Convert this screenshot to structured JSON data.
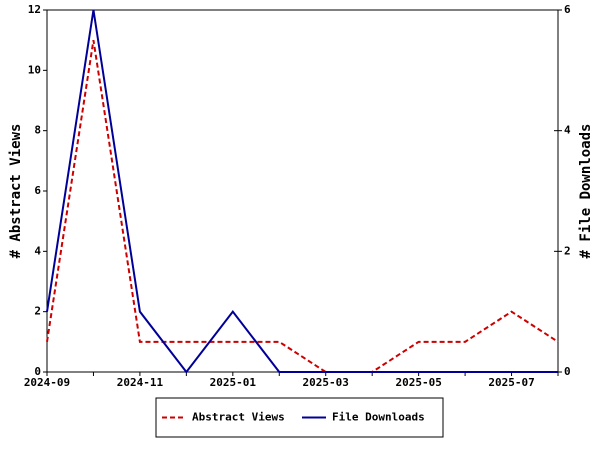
{
  "chart_data": {
    "type": "line",
    "categories": [
      "2024-09",
      null,
      "2024-11",
      null,
      "2025-01",
      null,
      "2025-03",
      null,
      "2025-05",
      null,
      "2025-07",
      null
    ],
    "series": [
      {
        "name": "Abstract Views",
        "color": "#cc0000",
        "values": [
          1,
          11,
          1,
          1,
          1,
          1,
          0,
          0,
          1,
          1,
          2,
          1
        ]
      },
      {
        "name": "File Downloads",
        "color": "#000099",
        "axis": "y2",
        "values": [
          1,
          6,
          1,
          0,
          1,
          0,
          0,
          0,
          0,
          0,
          0,
          0
        ]
      }
    ],
    "y_label": "# Abstract Views",
    "y2_label": "# File Downloads",
    "ylim": [
      0,
      12
    ],
    "yticks": [
      0,
      2,
      4,
      6,
      8,
      10,
      12
    ],
    "y2lim": [
      0,
      6
    ],
    "y2ticks": [
      0,
      2,
      4,
      6
    ]
  }
}
